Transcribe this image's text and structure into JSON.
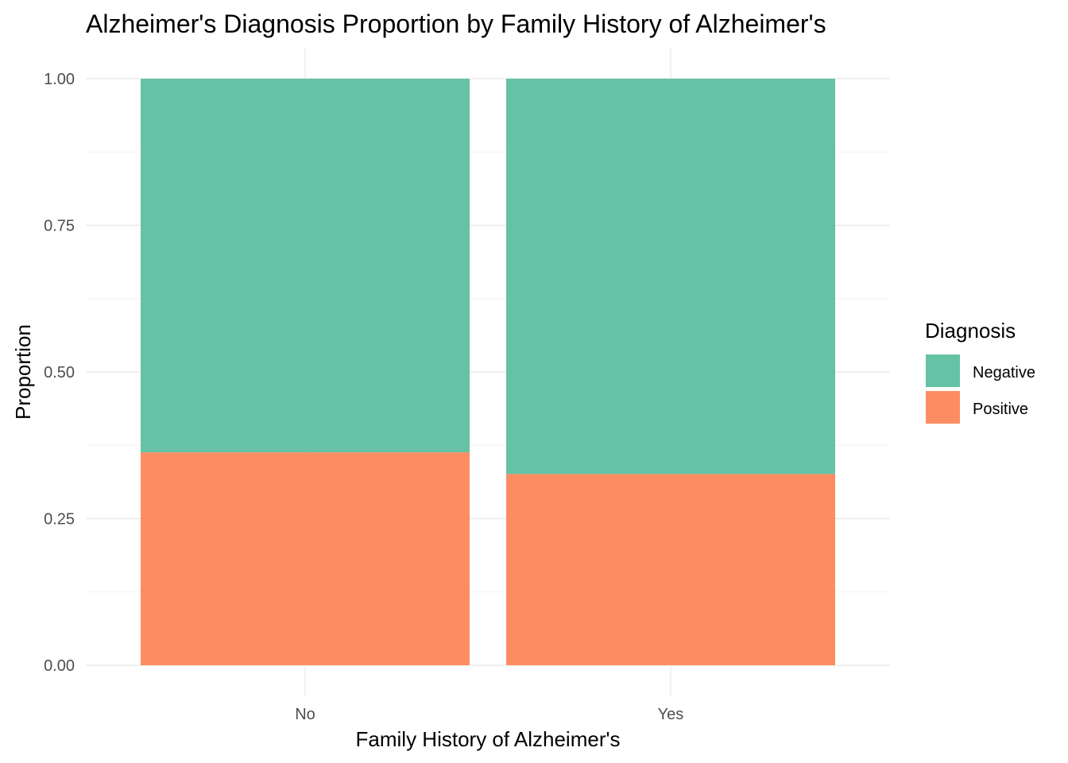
{
  "chart_data": {
    "type": "bar",
    "stacked": true,
    "title": "Alzheimer's Diagnosis Proportion by Family History of Alzheimer's",
    "xlabel": "Family History of Alzheimer's",
    "ylabel": "Proportion",
    "categories": [
      "No",
      "Yes"
    ],
    "ylim": [
      0,
      1
    ],
    "yticks": [
      "0.00",
      "0.25",
      "0.50",
      "0.75",
      "1.00"
    ],
    "ytick_values": [
      0,
      0.25,
      0.5,
      0.75,
      1
    ],
    "grid": true,
    "legend": {
      "title": "Diagnosis",
      "position": "right"
    },
    "series": [
      {
        "name": "Positive",
        "color": "#FC8D62",
        "values": [
          0.363,
          0.326
        ]
      },
      {
        "name": "Negative",
        "color": "#66C2A5",
        "values": [
          0.637,
          0.674
        ]
      }
    ],
    "legend_order": [
      "Negative",
      "Positive"
    ]
  }
}
